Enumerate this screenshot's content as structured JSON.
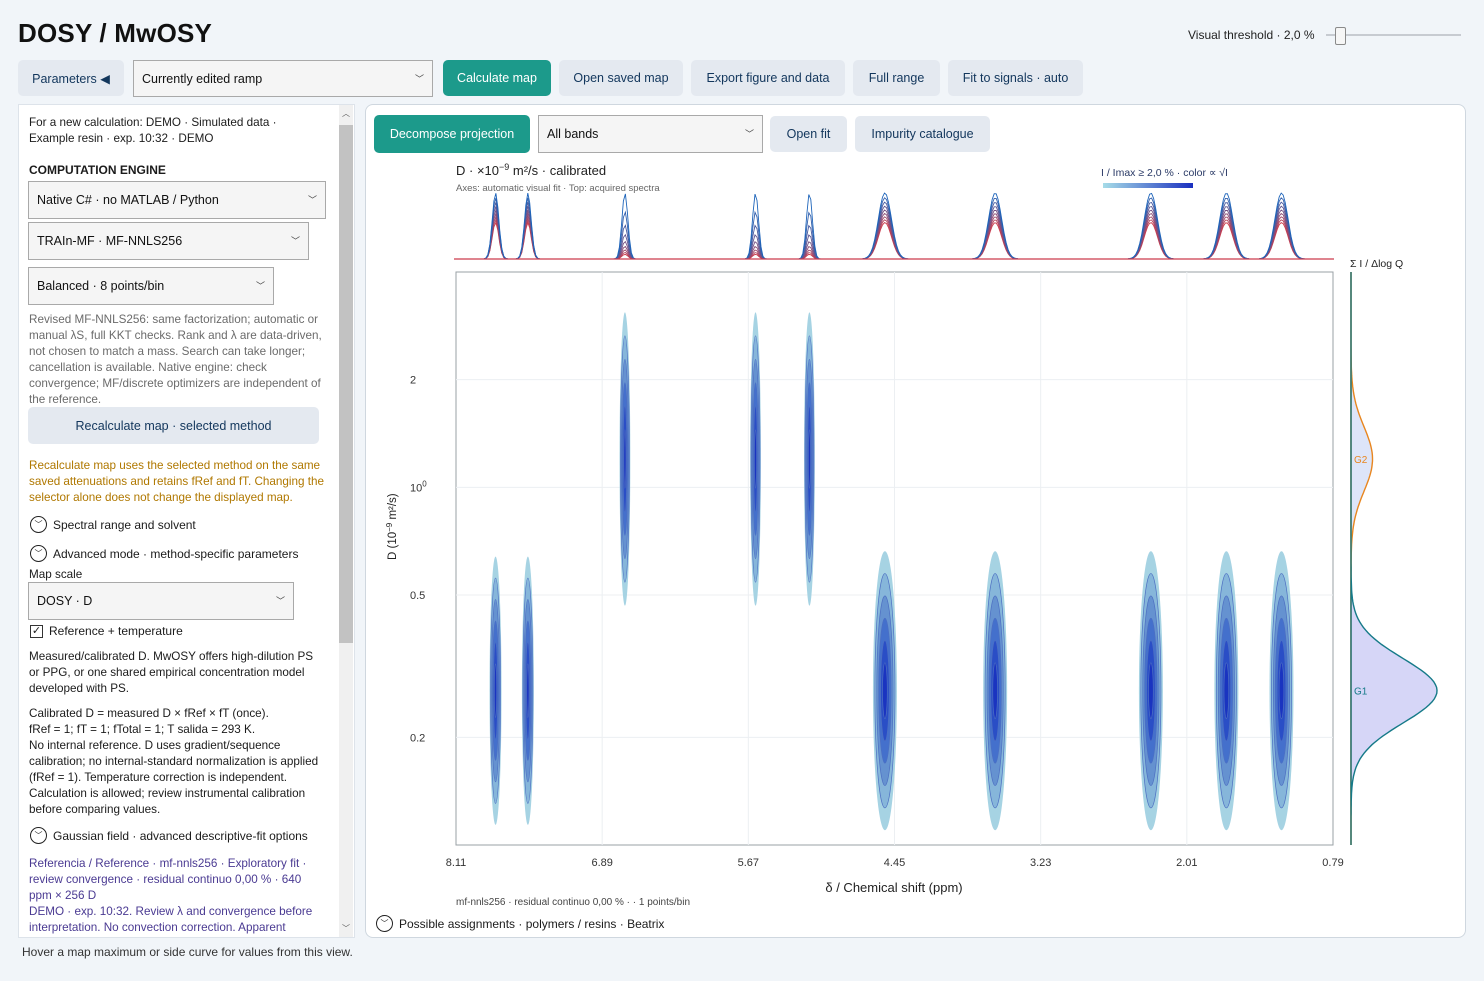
{
  "app": {
    "title": "DOSY / MwOSY"
  },
  "threshold": {
    "label": "Visual threshold · 2,0 %",
    "value_percent": 2.0
  },
  "toolbar": {
    "parameters_label": "Parameters ◀",
    "ramp_select": "Currently edited ramp",
    "calculate_label": "Calculate map",
    "open_saved_label": "Open saved map",
    "export_label": "Export figure and data",
    "full_range_label": "Full range",
    "fit_signals_label": "Fit to signals · auto"
  },
  "left": {
    "calc_info": "For a new calculation: DEMO · Simulated data · Example resin · exp. 10:32 · DEMO",
    "engine_heading": "COMPUTATION ENGINE",
    "engine_select": "Native C# · no MATLAB / Python",
    "method_select": "TRAIn-MF · MF-NNLS256",
    "points_select": "Balanced · 8 points/bin",
    "method_note": "Revised MF-NNLS256: same factorization; automatic or manual λS, full KKT checks. Rank and λ are data-driven, not chosen to match a mass. Search can take longer; cancellation is available. Native engine: check convergence; MF/discrete optimizers are independent of the reference.",
    "recalc_label": "Recalculate map · selected method",
    "recalc_note": "Recalculate map uses the selected method on the same saved attenuations and retains fRef and fT. Changing the selector alone does not change the displayed map.",
    "spectral_range": "Spectral range and solvent",
    "advanced_mode": "Advanced mode · method-specific parameters",
    "map_scale_label": "Map scale",
    "map_scale_select": "DOSY · D",
    "reference_temp": "Reference + temperature",
    "reference_checked": true,
    "measured_note": "Measured/calibrated D. MwOSY offers high-dilution PS or PPG, or one shared empirical concentration model developed with PS.",
    "calibrated_note": "Calibrated D = measured D × fRef × fT (once).",
    "factors_note": "fRef = 1; fT = 1; fTotal = 1; T salida = 293 K.",
    "no_reference_note": "No internal reference. D uses gradient/sequence calibration; no internal-standard normalization is applied (fRef = 1). Temperature correction is independent. Calculation is allowed; review instrumental calibration before comparing values.",
    "gaussian_field": "Gaussian field · advanced descriptive-fit options",
    "summary_note": "Referencia / Reference · mf-nnls256 · Exploratory fit · review convergence · residual continuo 0,00 % · 640 ppm × 256 D",
    "demo_note": "DEMO · exp. 10:32. Review λ and convergence before interpretation. No convection correction. Apparent"
  },
  "status": {
    "hover_hint": "Hover a map maximum or side curve for values from this view."
  },
  "panel": {
    "decompose_label": "Decompose projection",
    "bands_select": "All bands",
    "open_fit_label": "Open fit",
    "impurity_label": "Impurity catalogue",
    "assignments_label": "Possible assignments · polymers / resins · Beatrix"
  },
  "chart_data": {
    "type": "heatmap",
    "title_main": "D · ×10",
    "title_exp": "−9",
    "title_rest": " m²/s · calibrated",
    "subtitle": "Axes: automatic visual fit · Top: acquired spectra",
    "colorbar_label": "I / Imax ≥ 2,0 % · color ∝ √I",
    "side_label": "Σ I / Δlog Q",
    "xlabel": "δ / Chemical shift (ppm)",
    "ylabel_main": "D (10",
    "ylabel_exp": "−9",
    "ylabel_rest": " m²/s)",
    "xlim": [
      8.11,
      0.79
    ],
    "ylim_log": [
      0.1,
      4
    ],
    "x_ticks": [
      "8.11",
      "6.89",
      "5.67",
      "4.45",
      "3.23",
      "2.01",
      "0.79"
    ],
    "x_tick_values": [
      8.11,
      6.89,
      5.67,
      4.45,
      3.23,
      2.01,
      0.79
    ],
    "y_ticks": [
      {
        "label": "2",
        "value": 2
      },
      {
        "label": "10",
        "sup": "0",
        "value": 1
      },
      {
        "label": "0.5",
        "value": 0.5
      },
      {
        "label": "0.2",
        "value": 0.2
      }
    ],
    "footer": "mf-nnls256 · residual continuo 0,00 % · · 1 points/bin",
    "peaks": [
      {
        "x": 7.78,
        "D": 0.27,
        "sx": 0.05,
        "h": 0.75
      },
      {
        "x": 7.51,
        "D": 0.27,
        "sx": 0.05,
        "h": 0.75
      },
      {
        "x": 6.7,
        "D": 1.2,
        "sx": 0.045,
        "h": 0.82
      },
      {
        "x": 5.61,
        "D": 1.2,
        "sx": 0.045,
        "h": 0.82
      },
      {
        "x": 5.16,
        "D": 1.2,
        "sx": 0.045,
        "h": 0.82
      },
      {
        "x": 4.53,
        "D": 0.27,
        "sx": 0.1,
        "h": 0.78
      },
      {
        "x": 3.61,
        "D": 0.27,
        "sx": 0.1,
        "h": 0.78
      },
      {
        "x": 2.31,
        "D": 0.27,
        "sx": 0.1,
        "h": 0.78
      },
      {
        "x": 1.68,
        "D": 0.27,
        "sx": 0.1,
        "h": 0.78
      },
      {
        "x": 1.22,
        "D": 0.27,
        "sx": 0.1,
        "h": 0.78
      }
    ],
    "side_groups": [
      {
        "name": "G2",
        "D": 1.2,
        "color": "#e8861f",
        "amp": 0.25
      },
      {
        "name": "G1",
        "D": 0.27,
        "color": "#157a88",
        "amp": 1.0
      }
    ]
  }
}
